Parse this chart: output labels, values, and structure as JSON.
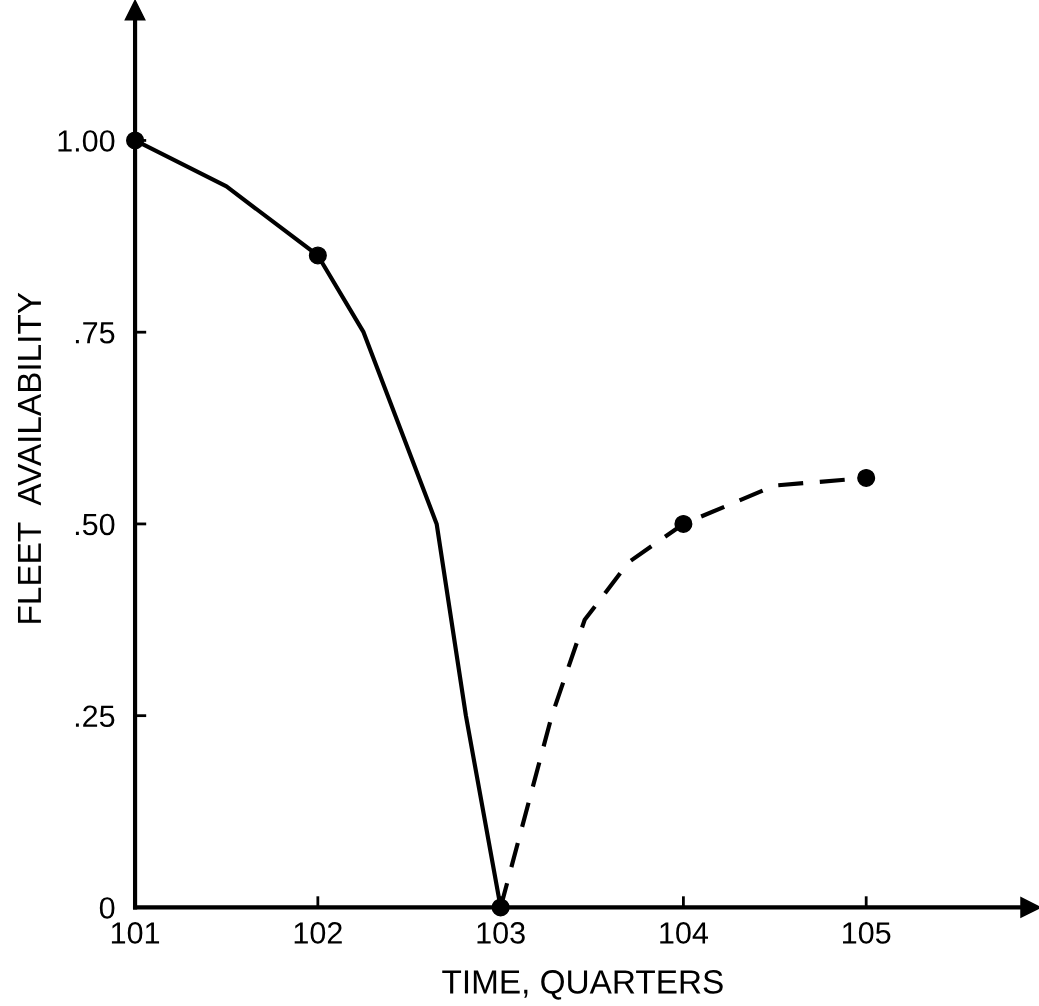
{
  "chart_data": {
    "type": "line",
    "xlabel": "TIME, QUARTERS",
    "ylabel": "FLEET  AVAILABILITY",
    "series": [
      {
        "color": "#000000",
        "line_style": "solid",
        "marker": "none",
        "x": [
          101,
          101.5,
          102,
          102.25,
          102.65,
          102.81,
          103
        ],
        "values": [
          1.0,
          0.94,
          0.85,
          0.75,
          0.5,
          0.25,
          0.0
        ]
      },
      {
        "color": "#000000",
        "line_style": "dashed",
        "marker": "none",
        "x": [
          103,
          103.28,
          103.46,
          103.7,
          104,
          104.5,
          105
        ],
        "values": [
          0.0,
          0.25,
          0.375,
          0.45,
          0.5,
          0.55,
          0.56
        ]
      },
      {
        "type": "scatter",
        "color": "#000000",
        "marker": "circle",
        "x": [
          101,
          102,
          103,
          104,
          105
        ],
        "values": [
          1.0,
          0.85,
          0.0,
          0.5,
          0.56
        ]
      }
    ],
    "grid": false,
    "legend": false,
    "xlim": [
      101,
      105.9
    ],
    "ylim": [
      0,
      1.17
    ],
    "xticks": [
      101,
      102,
      103,
      104,
      105
    ],
    "yticks": [
      {
        "value": 0,
        "label": "0"
      },
      {
        "value": 0.25,
        "label": ".25"
      },
      {
        "value": 0.5,
        "label": ".50"
      },
      {
        "value": 0.75,
        "label": ".75"
      },
      {
        "value": 1.0,
        "label": "1.00"
      }
    ]
  }
}
